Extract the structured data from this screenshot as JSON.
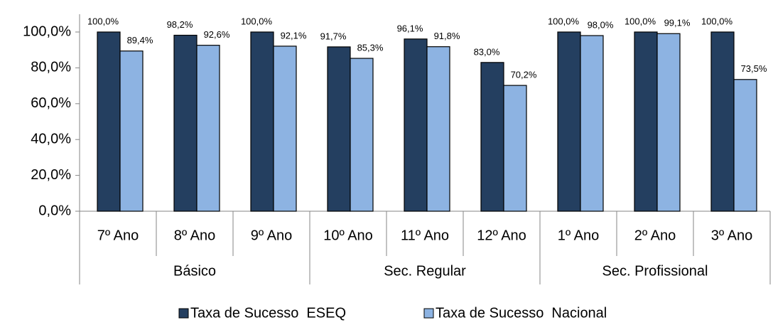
{
  "chart_data": {
    "type": "bar",
    "groups": [
      {
        "name": "Básico",
        "categories": [
          "7º Ano",
          "8º Ano",
          "9º Ano"
        ]
      },
      {
        "name": "Sec. Regular",
        "categories": [
          "10º Ano",
          "11º Ano",
          "12º Ano"
        ]
      },
      {
        "name": "Sec. Profissional",
        "categories": [
          "1º Ano",
          "2º Ano",
          "3º Ano"
        ]
      }
    ],
    "series": [
      {
        "name": "Taxa de Sucesso  ESEQ",
        "color": "#243f60",
        "values": [
          100,
          98.2,
          100,
          91.7,
          96.1,
          83.0,
          100,
          100,
          100
        ],
        "value_labels": [
          "100,0%",
          "98,2%",
          "100,0%",
          "91,7%",
          "96,1%",
          "83,0%",
          "100,0%",
          "100,0%",
          "100,0%"
        ]
      },
      {
        "name": "Taxa de Sucesso  Nacional",
        "color": "#8db3e2",
        "values": [
          89.4,
          92.6,
          92.1,
          85.3,
          91.8,
          70.2,
          98.0,
          99.1,
          73.5
        ],
        "value_labels": [
          "89,4%",
          "92,6%",
          "92,1%",
          "85,3%",
          "91,8%",
          "70,2%",
          "98,0%",
          "99,1%",
          "73,5%"
        ]
      }
    ],
    "ylim": [
      0,
      100
    ],
    "yticks": [
      {
        "value": 0,
        "label": "0,0%"
      },
      {
        "value": 20,
        "label": "20,0%"
      },
      {
        "value": 40,
        "label": "40,0%"
      },
      {
        "value": 60,
        "label": "60,0%"
      },
      {
        "value": 80,
        "label": "80,0%"
      },
      {
        "value": 100,
        "label": "100,0%"
      }
    ],
    "grid": false,
    "legend": "bottom"
  }
}
